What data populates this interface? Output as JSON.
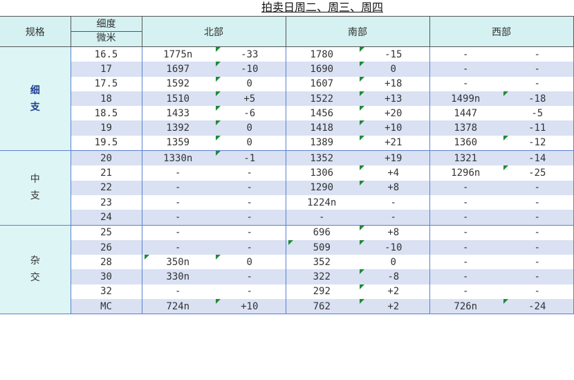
{
  "title": "拍卖日周二、周三、周四",
  "headers": {
    "spec": "规格",
    "fineness_top": "细度",
    "fineness_bottom": "微米",
    "north": "北部",
    "south": "南部",
    "west": "西部"
  },
  "groups": [
    {
      "label": "细支",
      "bold": true,
      "rows": [
        {
          "micron": "16.5",
          "n": "1775n",
          "nc": "-33",
          "s": "1780",
          "sc": "-15",
          "w": "-",
          "wc": "-",
          "tri": [
            2,
            4
          ]
        },
        {
          "micron": "17",
          "n": "1697",
          "nc": "-10",
          "s": "1690",
          "sc": "0",
          "w": "-",
          "wc": "-",
          "tri": [
            2,
            4
          ]
        },
        {
          "micron": "17.5",
          "n": "1592",
          "nc": "0",
          "s": "1607",
          "sc": "+18",
          "w": "-",
          "wc": "-",
          "tri": [
            2,
            4
          ]
        },
        {
          "micron": "18",
          "n": "1510",
          "nc": "+5",
          "s": "1522",
          "sc": "+13",
          "w": "1499n",
          "wc": "-18",
          "tri": [
            2,
            4,
            6
          ]
        },
        {
          "micron": "18.5",
          "n": "1433",
          "nc": "-6",
          "s": "1456",
          "sc": "+20",
          "w": "1447",
          "wc": "-5",
          "tri": [
            2,
            4
          ]
        },
        {
          "micron": "19",
          "n": "1392",
          "nc": "0",
          "s": "1418",
          "sc": "+10",
          "w": "1378",
          "wc": "-11",
          "tri": [
            2,
            4
          ]
        },
        {
          "micron": "19.5",
          "n": "1359",
          "nc": "0",
          "s": "1389",
          "sc": "+21",
          "w": "1360",
          "wc": "-12",
          "tri": [
            2,
            4,
            6
          ]
        }
      ]
    },
    {
      "label": "中支",
      "bold": false,
      "rows": [
        {
          "micron": "20",
          "n": "1330n",
          "nc": "-1",
          "s": "1352",
          "sc": "+19",
          "w": "1321",
          "wc": "-14",
          "tri": [
            2
          ]
        },
        {
          "micron": "21",
          "n": "-",
          "nc": "-",
          "s": "1306",
          "sc": "+4",
          "w": "1296n",
          "wc": "-25",
          "tri": [
            4,
            6
          ]
        },
        {
          "micron": "22",
          "n": "-",
          "nc": "-",
          "s": "1290",
          "sc": "+8",
          "w": "-",
          "wc": "-",
          "tri": [
            4
          ]
        },
        {
          "micron": "23",
          "n": "-",
          "nc": "-",
          "s": "1224n",
          "sc": "-",
          "w": "-",
          "wc": "-",
          "tri": []
        },
        {
          "micron": "24",
          "n": "-",
          "nc": "-",
          "s": "-",
          "sc": "-",
          "w": "-",
          "wc": "-",
          "tri": []
        }
      ]
    },
    {
      "label": "杂交",
      "bold": false,
      "rows": [
        {
          "micron": "25",
          "n": "-",
          "nc": "-",
          "s": "696",
          "sc": "+8",
          "w": "-",
          "wc": "-",
          "tri": [
            4
          ]
        },
        {
          "micron": "26",
          "n": "-",
          "nc": "-",
          "s": "509",
          "sc": "-10",
          "w": "-",
          "wc": "-",
          "tri": [
            3,
            4
          ]
        },
        {
          "micron": "28",
          "n": "350n",
          "nc": "0",
          "s": "352",
          "sc": "0",
          "w": "-",
          "wc": "-",
          "tri": [
            1,
            2
          ]
        },
        {
          "micron": "30",
          "n": "330n",
          "nc": "-",
          "s": "322",
          "sc": "-8",
          "w": "-",
          "wc": "-",
          "tri": [
            4
          ]
        },
        {
          "micron": "32",
          "n": "-",
          "nc": "-",
          "s": "292",
          "sc": "+2",
          "w": "-",
          "wc": "-",
          "tri": [
            4
          ]
        },
        {
          "micron": "MC",
          "n": "724n",
          "nc": "+10",
          "s": "762",
          "sc": "+2",
          "w": "726n",
          "wc": "-24",
          "tri": [
            2,
            4,
            6
          ]
        }
      ]
    }
  ],
  "colors": {
    "header_bg": "#d5f1f1",
    "row_alt_bg": "#d9e1f3",
    "group_text": "#2b4c9c",
    "dash": "#5b7fcf",
    "triangle": "#1f8a3a"
  }
}
